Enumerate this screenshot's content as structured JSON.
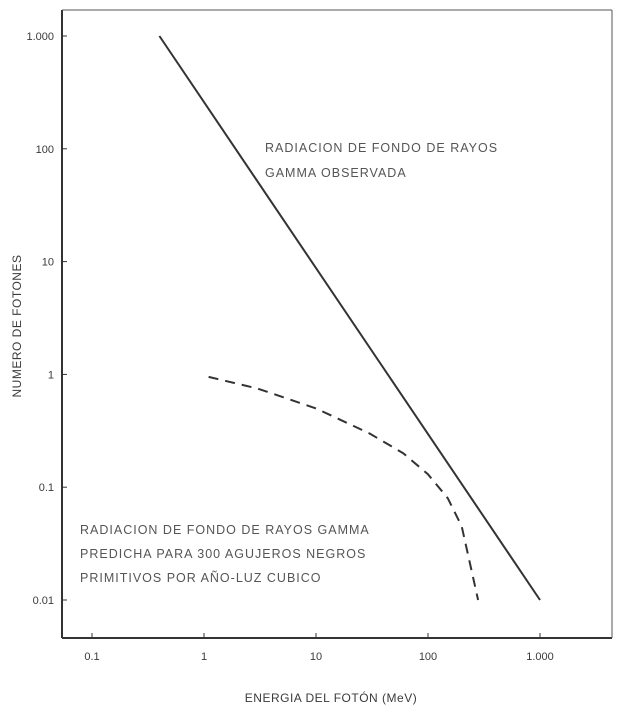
{
  "chart_data": {
    "type": "line",
    "title": "",
    "xlabel": "ENERGIA DEL FOTÓN (MeV)",
    "ylabel": "NUMERO DE FOTONES",
    "x_scale": "log",
    "y_scale": "log",
    "xlim": [
      0.1,
      1000
    ],
    "ylim": [
      0.01,
      1000
    ],
    "x_ticks": [
      {
        "value": 0.1,
        "label": "0.1"
      },
      {
        "value": 1,
        "label": "1"
      },
      {
        "value": 10,
        "label": "10"
      },
      {
        "value": 100,
        "label": "100"
      },
      {
        "value": 1000,
        "label": "1.000"
      }
    ],
    "y_ticks": [
      {
        "value": 0.01,
        "label": "0.01"
      },
      {
        "value": 0.1,
        "label": "0.1"
      },
      {
        "value": 1,
        "label": "1"
      },
      {
        "value": 10,
        "label": "10"
      },
      {
        "value": 100,
        "label": "100"
      },
      {
        "value": 1000,
        "label": "1.000"
      }
    ],
    "grid": false,
    "series": [
      {
        "style": "solid",
        "color": "#333333",
        "x": [
          0.4,
          1000
        ],
        "y": [
          1000,
          0.01
        ]
      },
      {
        "style": "dashed",
        "color": "#333333",
        "x": [
          1.1,
          3,
          10,
          30,
          60,
          100,
          150,
          200,
          280
        ],
        "y": [
          0.95,
          0.75,
          0.5,
          0.3,
          0.2,
          0.13,
          0.08,
          0.045,
          0.01
        ]
      }
    ],
    "annotations": [
      {
        "lines": [
          "RADIACION DE FONDO DE RAYOS",
          "GAMMA OBSERVADA"
        ]
      },
      {
        "lines": [
          "RADIACION DE FONDO DE RAYOS GAMMA",
          "PREDICHA PARA 300 AGUJEROS NEGROS",
          "PRIMITIVOS POR AÑO-LUZ CUBICO"
        ]
      }
    ]
  }
}
